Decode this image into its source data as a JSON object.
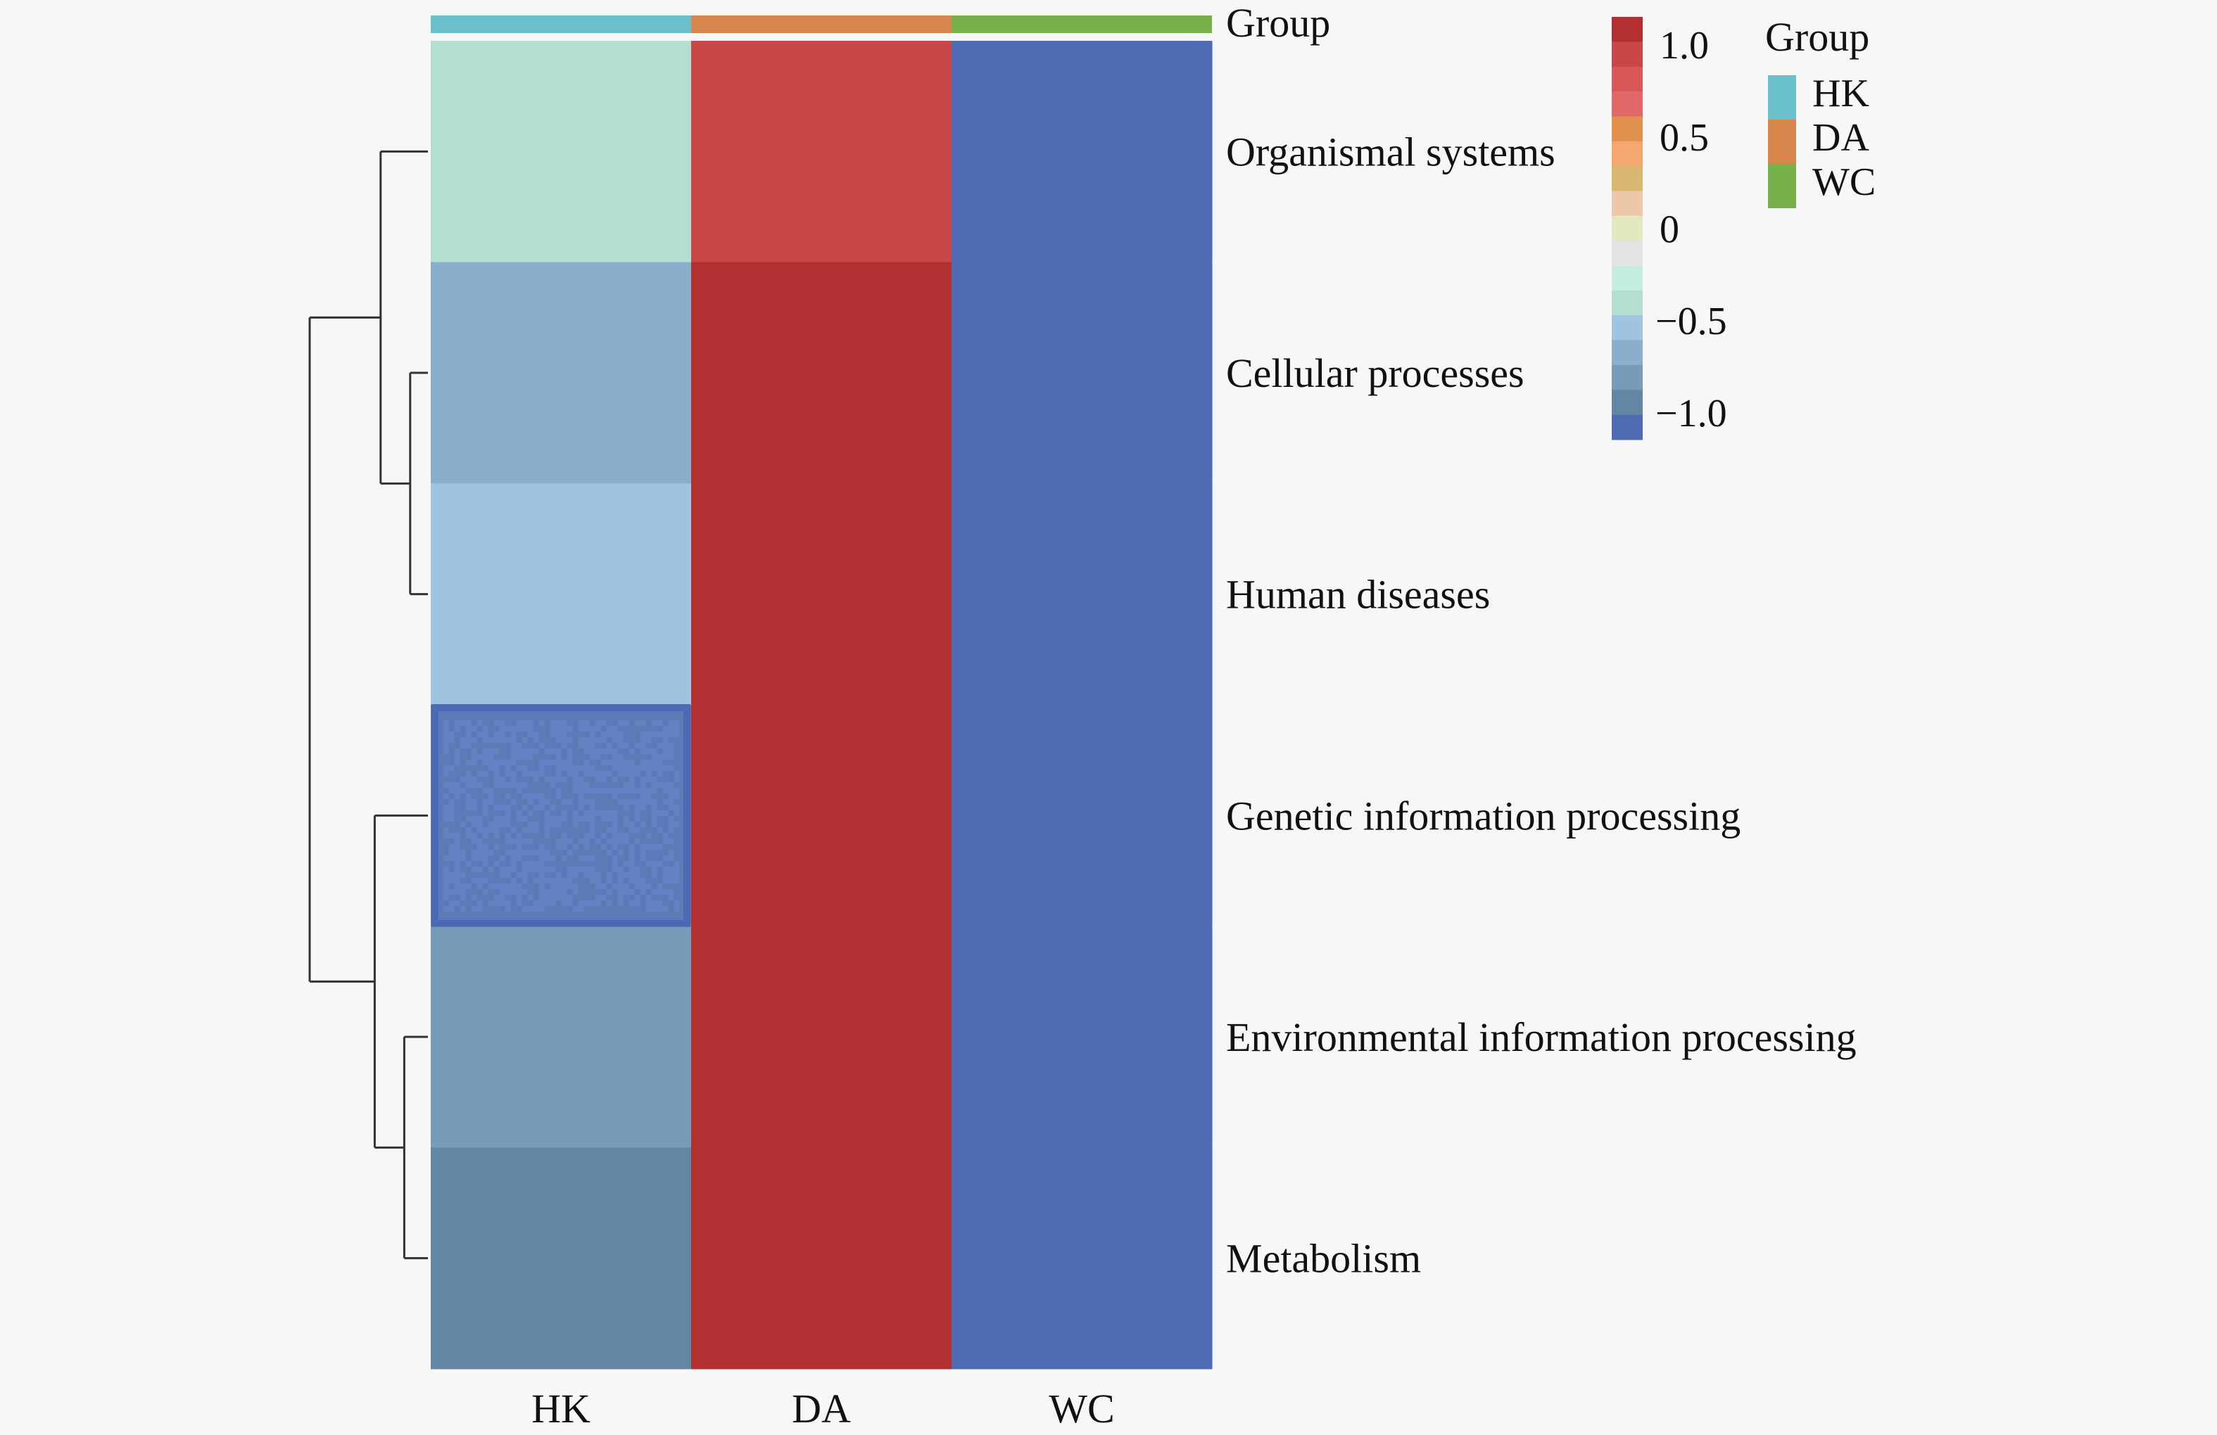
{
  "chart_data": {
    "type": "heatmap",
    "title": "",
    "columns": [
      "HK",
      "DA",
      "WC"
    ],
    "rows": [
      "Organismal systems",
      "Cellular processes",
      "Human diseases",
      "Genetic information processing",
      "Environmental information processing",
      "Metabolism"
    ],
    "values": [
      [
        -0.1,
        0.95,
        -1.1
      ],
      [
        -0.4,
        1.05,
        -1.1
      ],
      [
        -0.25,
        1.05,
        -1.1
      ],
      [
        -0.8,
        1.05,
        -1.1
      ],
      [
        -0.55,
        1.05,
        -1.1
      ],
      [
        -0.7,
        1.05,
        -1.1
      ]
    ],
    "annotation": {
      "label": "Group",
      "values": [
        "HK",
        "DA",
        "WC"
      ]
    },
    "row_dendrogram": {
      "description": "((Organismal systems,(Cellular processes,Human diseases)),(Genetic information processing,(Environmental information processing,Metabolism)))",
      "merges": [
        {
          "left": "Cellular processes",
          "right": "Human diseases",
          "height": 0.15
        },
        {
          "left": "Environmental information processing",
          "right": "Metabolism",
          "height": 0.2
        },
        {
          "left": "Organismal systems",
          "right": "Cellular processes+Human diseases",
          "height": 0.4
        },
        {
          "left": "Genetic information processing",
          "right": "Environmental information processing+Metabolism",
          "height": 0.45
        },
        {
          "left": "cluster-1",
          "right": "cluster-2",
          "height": 1.0
        }
      ]
    },
    "colorbar": {
      "ticks": [
        1.0,
        0.5,
        0,
        -0.5,
        -1.0
      ],
      "tick_labels": [
        "1.0",
        "0.5",
        "0",
        "−0.5",
        "−1.0"
      ],
      "range": [
        -1.15,
        1.15
      ],
      "colors_high_to_low": [
        "#b23032",
        "#c84848",
        "#d85858",
        "#e06868",
        "#e0904c",
        "#f4a870",
        "#d8b870",
        "#ecc8a8",
        "#e4e8c0",
        "#e4e4e4",
        "#c4ece0",
        "#b4dfd0",
        "#a0c4e0",
        "#8aaecb",
        "#789cb8",
        "#6386a4",
        "#4e6bb4"
      ]
    },
    "legend": {
      "title": "Group",
      "position": "top-right",
      "items": [
        {
          "label": "HK",
          "color": "#6ac0cc"
        },
        {
          "label": "DA",
          "color": "#d8874c"
        },
        {
          "label": "WC",
          "color": "#78b04a"
        }
      ]
    },
    "cell_colors": [
      [
        "#b4dfd0",
        "#c84848",
        "#4e6bb4"
      ],
      [
        "#8aaecb",
        "#b23032",
        "#4e6bb4"
      ],
      [
        "#a0c4e0",
        "#b23032",
        "#4e6bb4"
      ],
      [
        "#5c7bb6",
        "#b23032",
        "#4e6bb4"
      ],
      [
        "#789cb8",
        "#b23032",
        "#4e6bb4"
      ],
      [
        "#6386a4",
        "#b23032",
        "#4e6bb4"
      ]
    ]
  }
}
